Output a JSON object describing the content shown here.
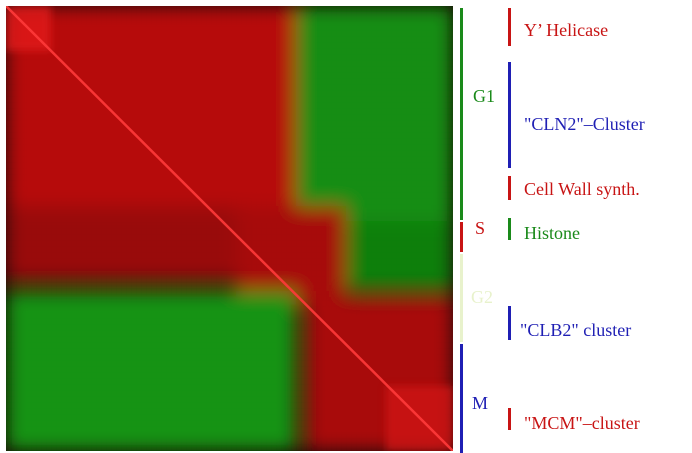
{
  "phases": [
    {
      "label": "G1",
      "color": "#1a8a1a"
    },
    {
      "label": "S",
      "color": "#c81414"
    },
    {
      "label": "G2",
      "color": "#e8f2cc"
    },
    {
      "label": "M",
      "color": "#1f1fb4"
    }
  ],
  "clusters": [
    {
      "label": "Y’ Helicase",
      "color": "#c81414"
    },
    {
      "label": "\"CLN2\"–Cluster",
      "color": "#1f1fb4"
    },
    {
      "label": "Cell Wall synth.",
      "color": "#c81414"
    },
    {
      "label": "Histone",
      "color": "#1a8a1a"
    },
    {
      "label": "\"CLB2\" cluster",
      "color": "#1f1fb4"
    },
    {
      "label": "\"MCM\"–cluster",
      "color": "#c81414"
    }
  ],
  "heatmap": {
    "colors": {
      "positive": "#d01010",
      "negative": "#12a012",
      "neutral": "#1a0000"
    }
  }
}
